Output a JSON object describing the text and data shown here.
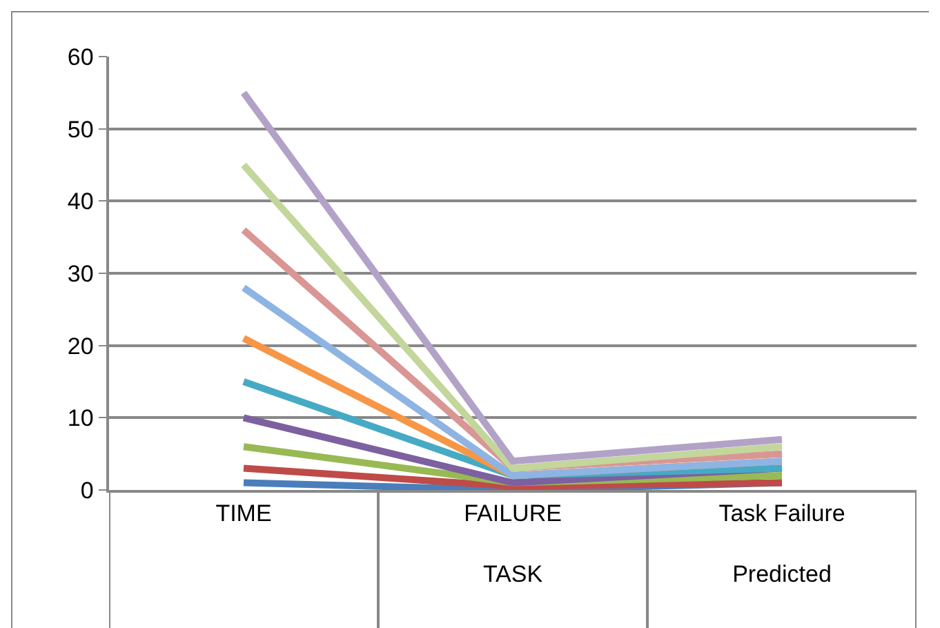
{
  "chart_data": {
    "type": "line",
    "categories": [
      "TIME",
      "FAILURE\nTASK",
      "Task Failure\nPredicted"
    ],
    "ylim": [
      0,
      60
    ],
    "yticks": [
      0,
      10,
      20,
      30,
      40,
      50,
      60
    ],
    "grid": "y",
    "marker": "none",
    "line_style": "solid",
    "series": [
      {
        "color": "#4a7ebb",
        "values": [
          1,
          0,
          1
        ]
      },
      {
        "color": "#be4b48",
        "values": [
          3,
          0.5,
          1
        ]
      },
      {
        "color": "#98b954",
        "values": [
          6,
          1,
          2
        ]
      },
      {
        "color": "#7d60a0",
        "values": [
          10,
          1,
          3
        ]
      },
      {
        "color": "#46aac5",
        "values": [
          15,
          2,
          3
        ]
      },
      {
        "color": "#f79646",
        "values": [
          21,
          2,
          4
        ]
      },
      {
        "color": "#8eb4e3",
        "values": [
          28,
          2,
          4
        ]
      },
      {
        "color": "#d99694",
        "values": [
          36,
          3,
          5
        ]
      },
      {
        "color": "#c3d69b",
        "values": [
          45,
          3,
          6
        ]
      },
      {
        "color": "#b3a2c7",
        "values": [
          55,
          4,
          7
        ]
      }
    ]
  }
}
